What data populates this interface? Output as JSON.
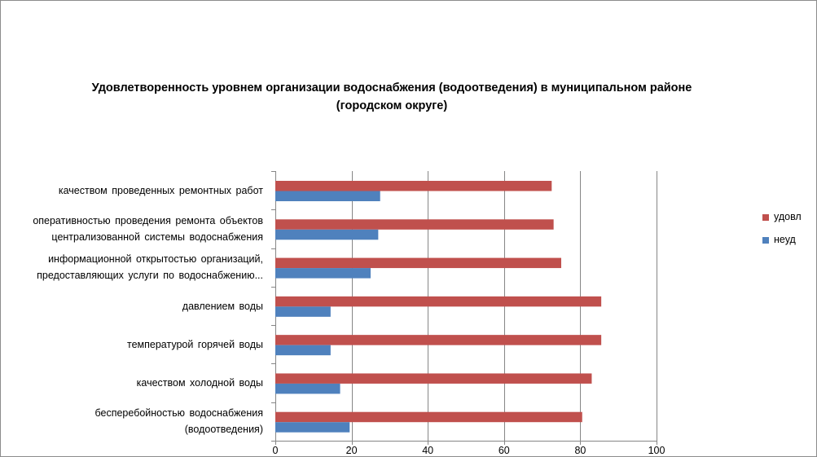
{
  "chart_data": {
    "type": "bar",
    "orientation": "horizontal",
    "title": "Удовлетворенность уровнем организации водоснабжения (водоотведения) в муниципальном районе (городском округе)",
    "title_lines": [
      "Удовлетворенность уровнем организации водоснабжения (водоотведения) в муниципальном районе",
      "(городском округе)"
    ],
    "categories": [
      "качеством проведенных ремонтных работ",
      "оперативностью проведения ремонта объектов централизованной системы водоснабжения",
      "информационной открытостью организаций, предоставляющих услуги по водоснабжению...",
      "давлением воды",
      "температурой горячей воды",
      "качеством холодной воды",
      "бесперебойностью водоснабжения (водоотведения)"
    ],
    "category_lines": [
      [
        "качеством проведенных ремонтных работ"
      ],
      [
        "оперативностью проведения ремонта объектов",
        "централизованной системы водоснабжения"
      ],
      [
        "информационной открытостью организаций,",
        "предоставляющих услуги по водоснабжению..."
      ],
      [
        "давлением воды"
      ],
      [
        "температурой горячей воды"
      ],
      [
        "качеством холодной воды"
      ],
      [
        "бесперебойностью водоснабжения",
        "(водоотведения)"
      ]
    ],
    "series": [
      {
        "name": "удовл",
        "color": "#C0504D",
        "values": [
          72.5,
          73,
          75,
          85.5,
          85.5,
          83,
          80.5
        ]
      },
      {
        "name": "неуд",
        "color": "#4F81BD",
        "values": [
          27.5,
          27,
          25,
          14.5,
          14.5,
          17,
          19.5
        ]
      }
    ],
    "x_ticks": [
      0,
      20,
      40,
      60,
      80,
      100
    ],
    "xlim": [
      0,
      100
    ],
    "grid": true,
    "legend_position": "right"
  }
}
